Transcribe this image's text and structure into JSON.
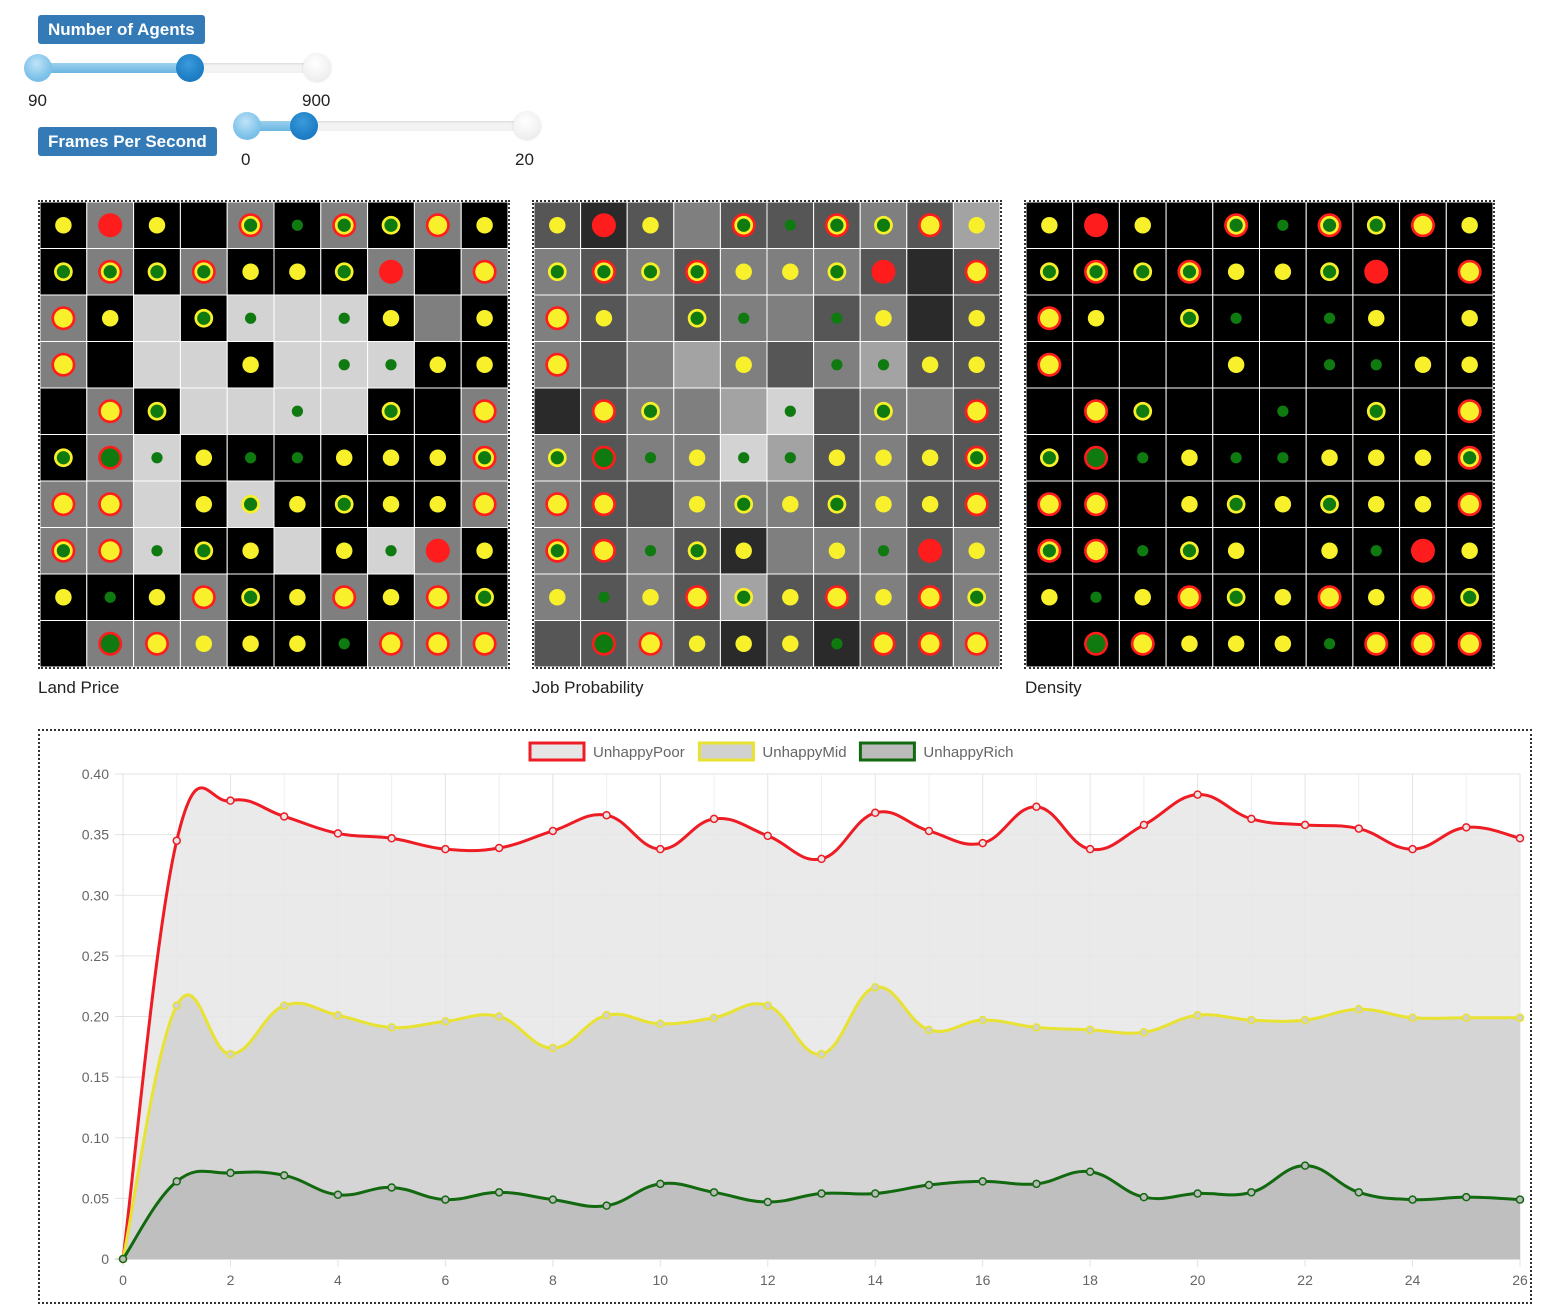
{
  "controls": {
    "agents": {
      "label": "Number of Agents",
      "min_label": "90",
      "max_label": "900",
      "value_fraction": 0.52
    },
    "fps": {
      "label": "Frames Per Second",
      "min_label": "0",
      "max_label": "20",
      "value_fraction": 0.2
    }
  },
  "panels": [
    {
      "key": "land",
      "label": "Land Price",
      "colors": [
        "#7f7f7f",
        "#000000",
        "#d3d3d3",
        "#565656",
        "#2a2a2a",
        "#a3a3a3",
        "#f3f3f3"
      ],
      "cells": [
        [
          1,
          0,
          1,
          1,
          0,
          1,
          0,
          1,
          0,
          1
        ],
        [
          1,
          0,
          1,
          0,
          1,
          1,
          1,
          0,
          1,
          0
        ],
        [
          0,
          1,
          2,
          1,
          2,
          2,
          2,
          1,
          0,
          1
        ],
        [
          0,
          1,
          2,
          2,
          1,
          2,
          2,
          2,
          1,
          1
        ],
        [
          1,
          0,
          1,
          2,
          2,
          2,
          2,
          1,
          1,
          0
        ],
        [
          1,
          0,
          2,
          1,
          1,
          1,
          1,
          1,
          1,
          0
        ],
        [
          0,
          0,
          2,
          1,
          2,
          1,
          1,
          1,
          1,
          0
        ],
        [
          0,
          0,
          2,
          1,
          1,
          2,
          1,
          2,
          0,
          1
        ],
        [
          1,
          1,
          1,
          0,
          1,
          1,
          0,
          1,
          0,
          1
        ],
        [
          1,
          0,
          0,
          0,
          1,
          1,
          1,
          0,
          0,
          0
        ]
      ]
    },
    {
      "key": "job",
      "label": "Job Probability",
      "colors": [
        "#7f7f7f",
        "#565656",
        "#a3a3a3",
        "#2a2a2a",
        "#d3d3d3"
      ],
      "cells": [
        [
          1,
          3,
          1,
          0,
          1,
          1,
          1,
          0,
          1,
          2
        ],
        [
          0,
          1,
          0,
          1,
          0,
          0,
          0,
          1,
          3,
          1
        ],
        [
          0,
          1,
          0,
          1,
          0,
          0,
          1,
          0,
          3,
          1
        ],
        [
          0,
          1,
          0,
          2,
          0,
          1,
          0,
          2,
          1,
          1
        ],
        [
          3,
          1,
          0,
          0,
          2,
          4,
          1,
          0,
          0,
          1
        ],
        [
          0,
          1,
          0,
          0,
          4,
          2,
          1,
          0,
          1,
          1
        ],
        [
          0,
          1,
          1,
          0,
          0,
          0,
          1,
          0,
          1,
          1
        ],
        [
          0,
          1,
          0,
          1,
          3,
          0,
          0,
          0,
          1,
          0
        ],
        [
          0,
          1,
          0,
          1,
          2,
          1,
          1,
          0,
          1,
          0
        ],
        [
          1,
          1,
          0,
          1,
          3,
          1,
          3,
          1,
          1,
          0
        ]
      ]
    },
    {
      "key": "density",
      "label": "Density",
      "colors": [
        "#000000"
      ],
      "cells": [
        [
          0,
          0,
          0,
          0,
          0,
          0,
          0,
          0,
          0,
          0
        ],
        [
          0,
          0,
          0,
          0,
          0,
          0,
          0,
          0,
          0,
          0
        ],
        [
          0,
          0,
          0,
          0,
          0,
          0,
          0,
          0,
          0,
          0
        ],
        [
          0,
          0,
          0,
          0,
          0,
          0,
          0,
          0,
          0,
          0
        ],
        [
          0,
          0,
          0,
          0,
          0,
          0,
          0,
          0,
          0,
          0
        ],
        [
          0,
          0,
          0,
          0,
          0,
          0,
          0,
          0,
          0,
          0
        ],
        [
          0,
          0,
          0,
          0,
          0,
          0,
          0,
          0,
          0,
          0
        ],
        [
          0,
          0,
          0,
          0,
          0,
          0,
          0,
          0,
          0,
          0
        ],
        [
          0,
          0,
          0,
          0,
          0,
          0,
          0,
          0,
          0,
          0
        ],
        [
          0,
          0,
          0,
          0,
          0,
          0,
          0,
          0,
          0,
          0
        ]
      ]
    }
  ],
  "agents_legend": "Y=yellow (mid), R=red (poor), G=green (rich), RY=red ring yellow, YG=yellow ring green, RG=red ring green, RYG=red/yellow/green, 0=empty",
  "agents": [
    [
      "Y",
      "R",
      "Y",
      "0",
      "RYG",
      "G",
      "RYG",
      "YG",
      "RY",
      "Y"
    ],
    [
      "YG",
      "RYG",
      "YG",
      "RYG",
      "Y",
      "Y",
      "YG",
      "R",
      "0",
      "RY"
    ],
    [
      "RY",
      "Y",
      "0",
      "YG",
      "G",
      "0",
      "G",
      "Y",
      "0",
      "Y"
    ],
    [
      "RY",
      "0",
      "0",
      "0",
      "Y",
      "0",
      "G",
      "G",
      "Y",
      "Y"
    ],
    [
      "0",
      "RY",
      "YG",
      "0",
      "0",
      "G",
      "0",
      "YG",
      "0",
      "RY"
    ],
    [
      "YG",
      "RG",
      "G",
      "Y",
      "G",
      "G",
      "Y",
      "Y",
      "Y",
      "RYG"
    ],
    [
      "RY",
      "RY",
      "0",
      "Y",
      "YG",
      "Y",
      "YG",
      "Y",
      "Y",
      "RY"
    ],
    [
      "RYG",
      "RY",
      "G",
      "YG",
      "Y",
      "0",
      "Y",
      "G",
      "R",
      "Y"
    ],
    [
      "Y",
      "G",
      "Y",
      "RY",
      "YG",
      "Y",
      "RY",
      "Y",
      "RY",
      "YG"
    ],
    [
      "0",
      "RG",
      "RY",
      "Y",
      "Y",
      "Y",
      "G",
      "RY",
      "RY",
      "RY"
    ]
  ],
  "colors": {
    "poor": "#ff1c1c",
    "mid": "#f7f02a",
    "rich": "#0f7a0f",
    "grid_line": "#ffffff"
  },
  "chart_data": {
    "type": "area",
    "title": "",
    "xlabel": "",
    "ylabel": "",
    "ylim": [
      0,
      0.4
    ],
    "xlim": [
      0,
      26
    ],
    "yticks": [
      "0",
      "0.05",
      "0.10",
      "0.15",
      "0.20",
      "0.25",
      "0.30",
      "0.35",
      "0.40"
    ],
    "xticks": [
      "0",
      "2",
      "4",
      "6",
      "8",
      "10",
      "12",
      "14",
      "16",
      "18",
      "20",
      "22",
      "24",
      "26"
    ],
    "x": [
      0,
      1,
      2,
      3,
      4,
      5,
      6,
      7,
      8,
      9,
      10,
      11,
      12,
      13,
      14,
      15,
      16,
      17,
      18,
      19,
      20,
      21,
      22,
      23,
      24,
      25,
      26
    ],
    "series": [
      {
        "name": "UnhappyPoor",
        "color": "#ee1c24",
        "fill": "#e6e6e6",
        "values": [
          0,
          0.345,
          0.378,
          0.365,
          0.351,
          0.347,
          0.338,
          0.339,
          0.353,
          0.366,
          0.338,
          0.363,
          0.349,
          0.33,
          0.368,
          0.353,
          0.343,
          0.373,
          0.338,
          0.358,
          0.383,
          0.363,
          0.358,
          0.355,
          0.338,
          0.356,
          0.347
        ]
      },
      {
        "name": "UnhappyMid",
        "color": "#e8e232",
        "fill": "#d1d1d1",
        "values": [
          0,
          0.209,
          0.169,
          0.209,
          0.201,
          0.191,
          0.196,
          0.2,
          0.174,
          0.201,
          0.194,
          0.199,
          0.209,
          0.169,
          0.224,
          0.189,
          0.197,
          0.191,
          0.189,
          0.187,
          0.201,
          0.197,
          0.197,
          0.206,
          0.199,
          0.199,
          0.199
        ]
      },
      {
        "name": "UnhappyRich",
        "color": "#12690f",
        "fill": "#bbbbbb",
        "values": [
          0,
          0.064,
          0.071,
          0.069,
          0.053,
          0.059,
          0.049,
          0.055,
          0.049,
          0.044,
          0.062,
          0.055,
          0.047,
          0.054,
          0.054,
          0.061,
          0.064,
          0.062,
          0.072,
          0.051,
          0.054,
          0.055,
          0.077,
          0.055,
          0.049,
          0.051,
          0.049
        ]
      }
    ],
    "legend_position": "top",
    "grid": true
  }
}
